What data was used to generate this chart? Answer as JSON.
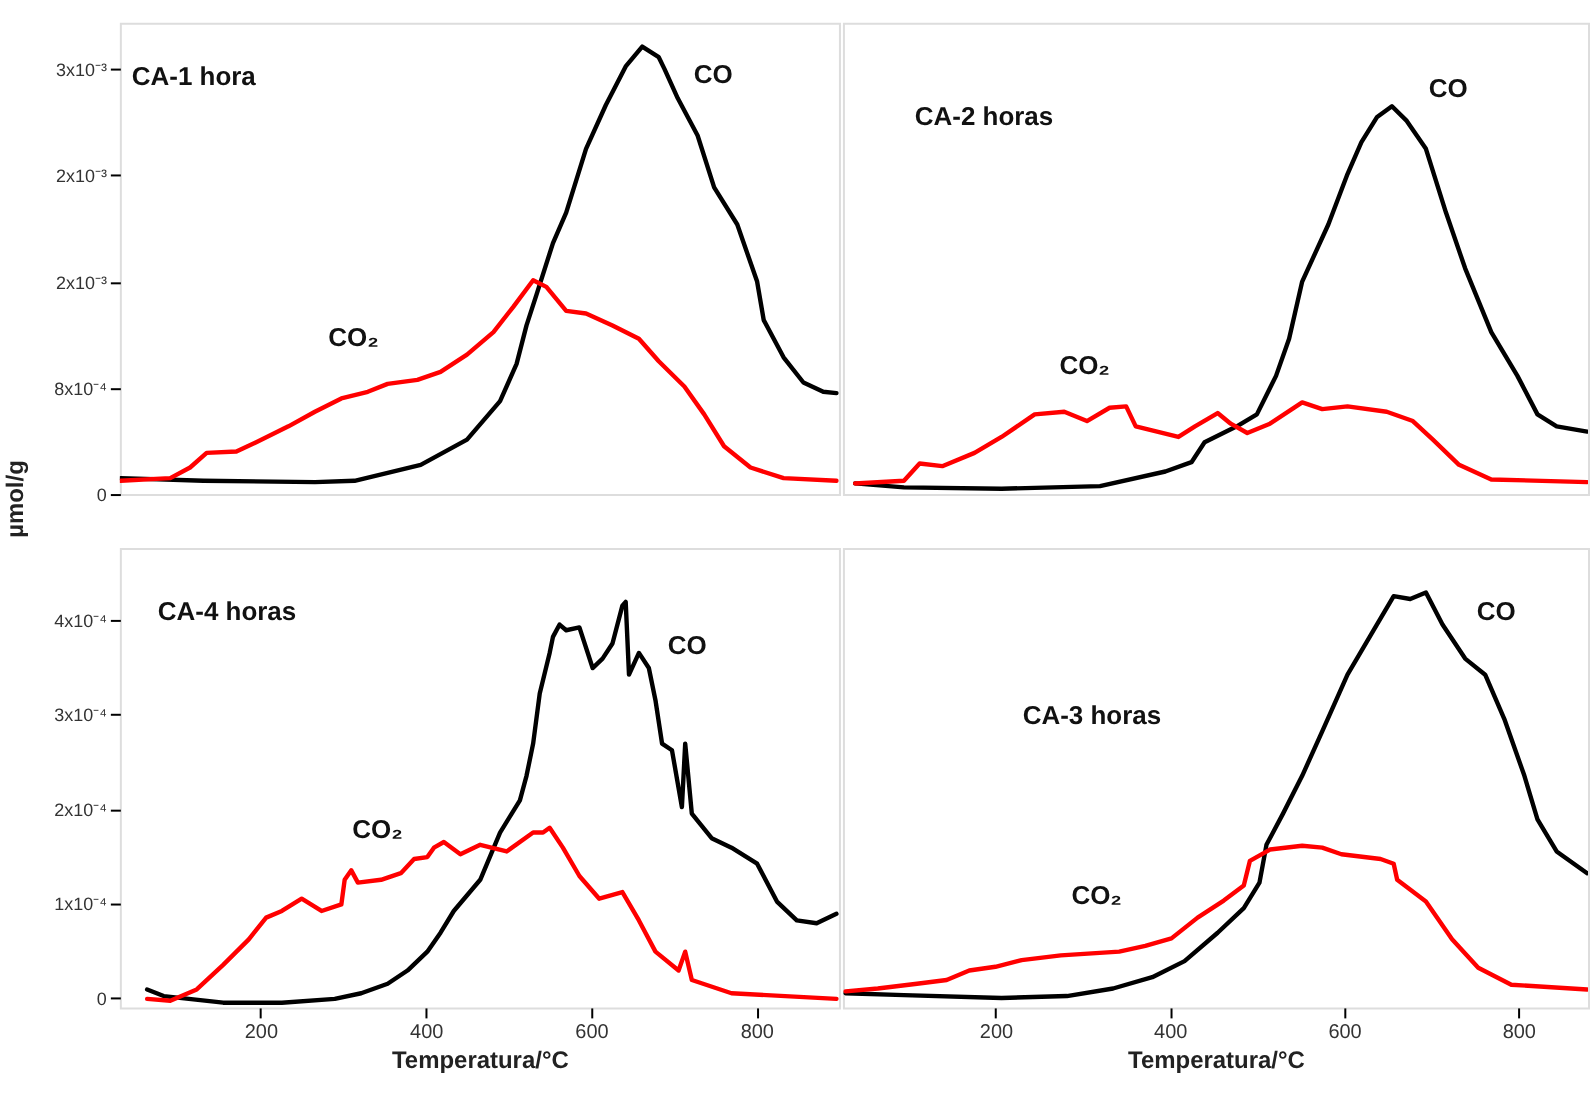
{
  "chart_data": [
    {
      "type": "line",
      "title": "CA-1 hora",
      "ylabel": "µmol/g",
      "tick_labels": "y",
      "xlim": [
        30,
        900
      ],
      "ylim": [
        0,
        0.00355
      ],
      "yticks": [
        {
          "value": 0,
          "label": "0"
        },
        {
          "value": 0.0008,
          "label": "8x10⁻⁴"
        },
        {
          "value": 0.0016,
          "label": "2x10⁻³"
        },
        {
          "value": 0.0024,
          "label": "2x10⁻³"
        },
        {
          "value": 0.0032,
          "label": "3x10⁻³"
        }
      ],
      "series": [
        {
          "color": "#000000",
          "x": [
            31,
            131,
            266,
            314,
            394,
            450,
            490,
            510,
            522,
            534,
            554,
            570,
            594,
            618,
            642,
            662,
            682,
            689,
            705,
            729,
            749,
            777,
            801,
            809,
            833,
            857,
            881,
            897
          ],
          "values": [
            0.00012,
            0.0001,
            9e-05,
            0.0001,
            0.00022,
            0.00041,
            0.0007,
            0.00098,
            0.00127,
            0.0015,
            0.00189,
            0.00212,
            0.0026,
            0.00293,
            0.00322,
            0.00337,
            0.00329,
            0.0032,
            0.00298,
            0.0027,
            0.00231,
            0.00203,
            0.0016,
            0.00131,
            0.00103,
            0.00084,
            0.00077,
            0.00076
          ]
        },
        {
          "color": "#ff0000",
          "x": [
            31,
            91,
            115,
            135,
            171,
            195,
            234,
            266,
            298,
            330,
            354,
            390,
            418,
            450,
            482,
            506,
            530,
            546,
            570,
            594,
            626,
            658,
            682,
            713,
            737,
            761,
            793,
            833,
            897
          ],
          "values": [
            0.0001,
            0.00012,
            0.0002,
            0.00031,
            0.00032,
            0.00039,
            0.00051,
            0.00062,
            0.00072,
            0.00077,
            0.00083,
            0.00086,
            0.00092,
            0.00105,
            0.00122,
            0.00141,
            0.00161,
            0.00156,
            0.00138,
            0.00136,
            0.00127,
            0.00117,
            0.001,
            0.00081,
            0.0006,
            0.00036,
            0.0002,
            0.00012,
            0.0001
          ]
        }
      ],
      "annotations": [
        "CO",
        "CO₂"
      ]
    },
    {
      "type": "line",
      "title": "CA-2 horas",
      "tick_labels": false,
      "xlim": [
        25,
        880
      ],
      "ylim": [
        0,
        0.00355
      ],
      "series": [
        {
          "color": "#000000",
          "x": [
            39,
            95,
            207,
            320,
            395,
            425,
            440,
            477,
            500,
            522,
            537,
            552,
            582,
            604,
            620,
            638,
            655,
            672,
            694,
            717,
            739,
            769,
            799,
            822,
            844,
            879
          ],
          "values": [
            8e-05,
            5e-05,
            4e-05,
            6e-05,
            0.00017,
            0.00024,
            0.00039,
            0.00051,
            0.0006,
            0.00089,
            0.00117,
            0.0016,
            0.00203,
            0.00241,
            0.00265,
            0.00284,
            0.00292,
            0.00281,
            0.0026,
            0.00212,
            0.0017,
            0.00122,
            0.00089,
            0.0006,
            0.00051,
            0.00047
          ]
        },
        {
          "color": "#ff0000",
          "x": [
            39,
            95,
            113,
            139,
            176,
            207,
            245,
            279,
            305,
            331,
            350,
            361,
            410,
            429,
            455,
            470,
            489,
            515,
            552,
            575,
            604,
            649,
            679,
            702,
            732,
            769,
            879
          ],
          "values": [
            8e-05,
            0.0001,
            0.00023,
            0.00021,
            0.00031,
            0.00043,
            0.0006,
            0.00062,
            0.00055,
            0.00065,
            0.00066,
            0.00051,
            0.00043,
            0.00051,
            0.00061,
            0.00053,
            0.00046,
            0.00053,
            0.00069,
            0.00064,
            0.00066,
            0.00062,
            0.00055,
            0.00041,
            0.00022,
            0.00011,
            9e-05
          ]
        }
      ],
      "annotations": [
        "CO",
        "CO₂"
      ]
    },
    {
      "type": "line",
      "title": "CA-4 horas",
      "xlabel": "Temperatura/°C",
      "xlim": [
        30,
        900
      ],
      "ylim": [
        -1e-05,
        0.000476
      ],
      "xticks": [
        200,
        400,
        600,
        800
      ],
      "yticks": [
        {
          "value": 0,
          "label": "0"
        },
        {
          "value": 0.0001,
          "label": "1x10⁻⁴"
        },
        {
          "value": 0.0002,
          "label": "2x10⁻⁴"
        },
        {
          "value": 0.0003,
          "label": "3x10⁻⁴"
        },
        {
          "value": 0.0004,
          "label": "4x10⁻⁴"
        }
      ],
      "series": [
        {
          "color": "#000000",
          "x": [
            63,
            83,
            155,
            226,
            290,
            322,
            354,
            378,
            402,
            418,
            434,
            466,
            490,
            514,
            522,
            530,
            538,
            550,
            554,
            562,
            570,
            586,
            602,
            614,
            626,
            638,
            642,
            646,
            658,
            670,
            678,
            686,
            698,
            710,
            714,
            722,
            746,
            770,
            801,
            825,
            849,
            873,
            897
          ],
          "values": [
            9e-06,
            2e-06,
            -5e-06,
            -5e-06,
            -1e-06,
            5e-06,
            1.5e-05,
            2.9e-05,
            4.9e-05,
            6.9e-05,
            9.2e-05,
            0.000125,
            0.000175,
            0.000209,
            0.000235,
            0.000269,
            0.000322,
            0.000365,
            0.000382,
            0.000395,
            0.000389,
            0.000392,
            0.000349,
            0.000359,
            0.000375,
            0.000415,
            0.000419,
            0.000342,
            0.000365,
            0.000349,
            0.000315,
            0.000269,
            0.000262,
            0.000202,
            0.000269,
            0.000195,
            0.000169,
            0.000159,
            0.000142,
            0.000102,
            8.2e-05,
            7.9e-05,
            8.9e-05
          ]
        },
        {
          "color": "#ff0000",
          "x": [
            63,
            91,
            123,
            155,
            186,
            207,
            226,
            250,
            274,
            298,
            302,
            310,
            318,
            346,
            370,
            386,
            402,
            410,
            422,
            442,
            466,
            498,
            530,
            542,
            550,
            566,
            586,
            610,
            638,
            658,
            678,
            706,
            714,
            722,
            770,
            897
          ],
          "values": [
            -1e-06,
            -3e-06,
            9e-06,
            3.5e-05,
            6.2e-05,
            8.5e-05,
            9.2e-05,
            0.000105,
            9.2e-05,
            9.9e-05,
            0.000125,
            0.000135,
            0.000122,
            0.000125,
            0.000132,
            0.000147,
            0.000149,
            0.000159,
            0.000165,
            0.000152,
            0.000162,
            0.000155,
            0.000175,
            0.000175,
            0.00018,
            0.000159,
            0.000129,
            0.000105,
            0.000112,
            8.2e-05,
            4.9e-05,
            2.9e-05,
            4.9e-05,
            1.9e-05,
            5e-06,
            -1e-06
          ]
        }
      ],
      "annotations": [
        "CO",
        "CO₂"
      ]
    },
    {
      "type": "line",
      "title": "CA-3 horas",
      "xlabel": "Temperatura/°C",
      "tick_labels": "x",
      "xlim": [
        25,
        880
      ],
      "ylim": [
        -1e-05,
        0.000476
      ],
      "xticks": [
        200,
        400,
        600,
        800
      ],
      "series": [
        {
          "color": "#000000",
          "x": [
            28,
            95,
            207,
            282,
            335,
            380,
            417,
            455,
            485,
            503,
            511,
            530,
            552,
            575,
            604,
            634,
            657,
            676,
            694,
            713,
            739,
            762,
            784,
            807,
            822,
            844,
            879
          ],
          "values": [
            5e-06,
            3e-06,
            0,
            2e-06,
            1e-05,
            2.2e-05,
            3.9e-05,
            6.9e-05,
            9.5e-05,
            0.000122,
            0.000162,
            0.000195,
            0.000235,
            0.000282,
            0.000342,
            0.000389,
            0.000425,
            0.000422,
            0.000429,
            0.000395,
            0.000359,
            0.000342,
            0.000295,
            0.000235,
            0.000189,
            0.000155,
            0.000132
          ]
        },
        {
          "color": "#ff0000",
          "x": [
            28,
            65,
            110,
            144,
            170,
            200,
            230,
            275,
            342,
            372,
            402,
            432,
            462,
            485,
            492,
            515,
            552,
            575,
            597,
            642,
            657,
            661,
            694,
            724,
            754,
            792,
            879
          ],
          "values": [
            7e-06,
            1e-05,
            1.5e-05,
            1.9e-05,
            2.9e-05,
            3.3e-05,
            4e-05,
            4.5e-05,
            4.9e-05,
            5.5e-05,
            6.3e-05,
            8.5e-05,
            0.000103,
            0.000119,
            0.000145,
            0.000157,
            0.000161,
            0.000159,
            0.000152,
            0.000147,
            0.000142,
            0.000125,
            0.000102,
            6.2e-05,
            3.2e-05,
            1.4e-05,
            9e-06
          ]
        }
      ],
      "annotations": [
        "CO",
        "CO₂"
      ]
    }
  ]
}
